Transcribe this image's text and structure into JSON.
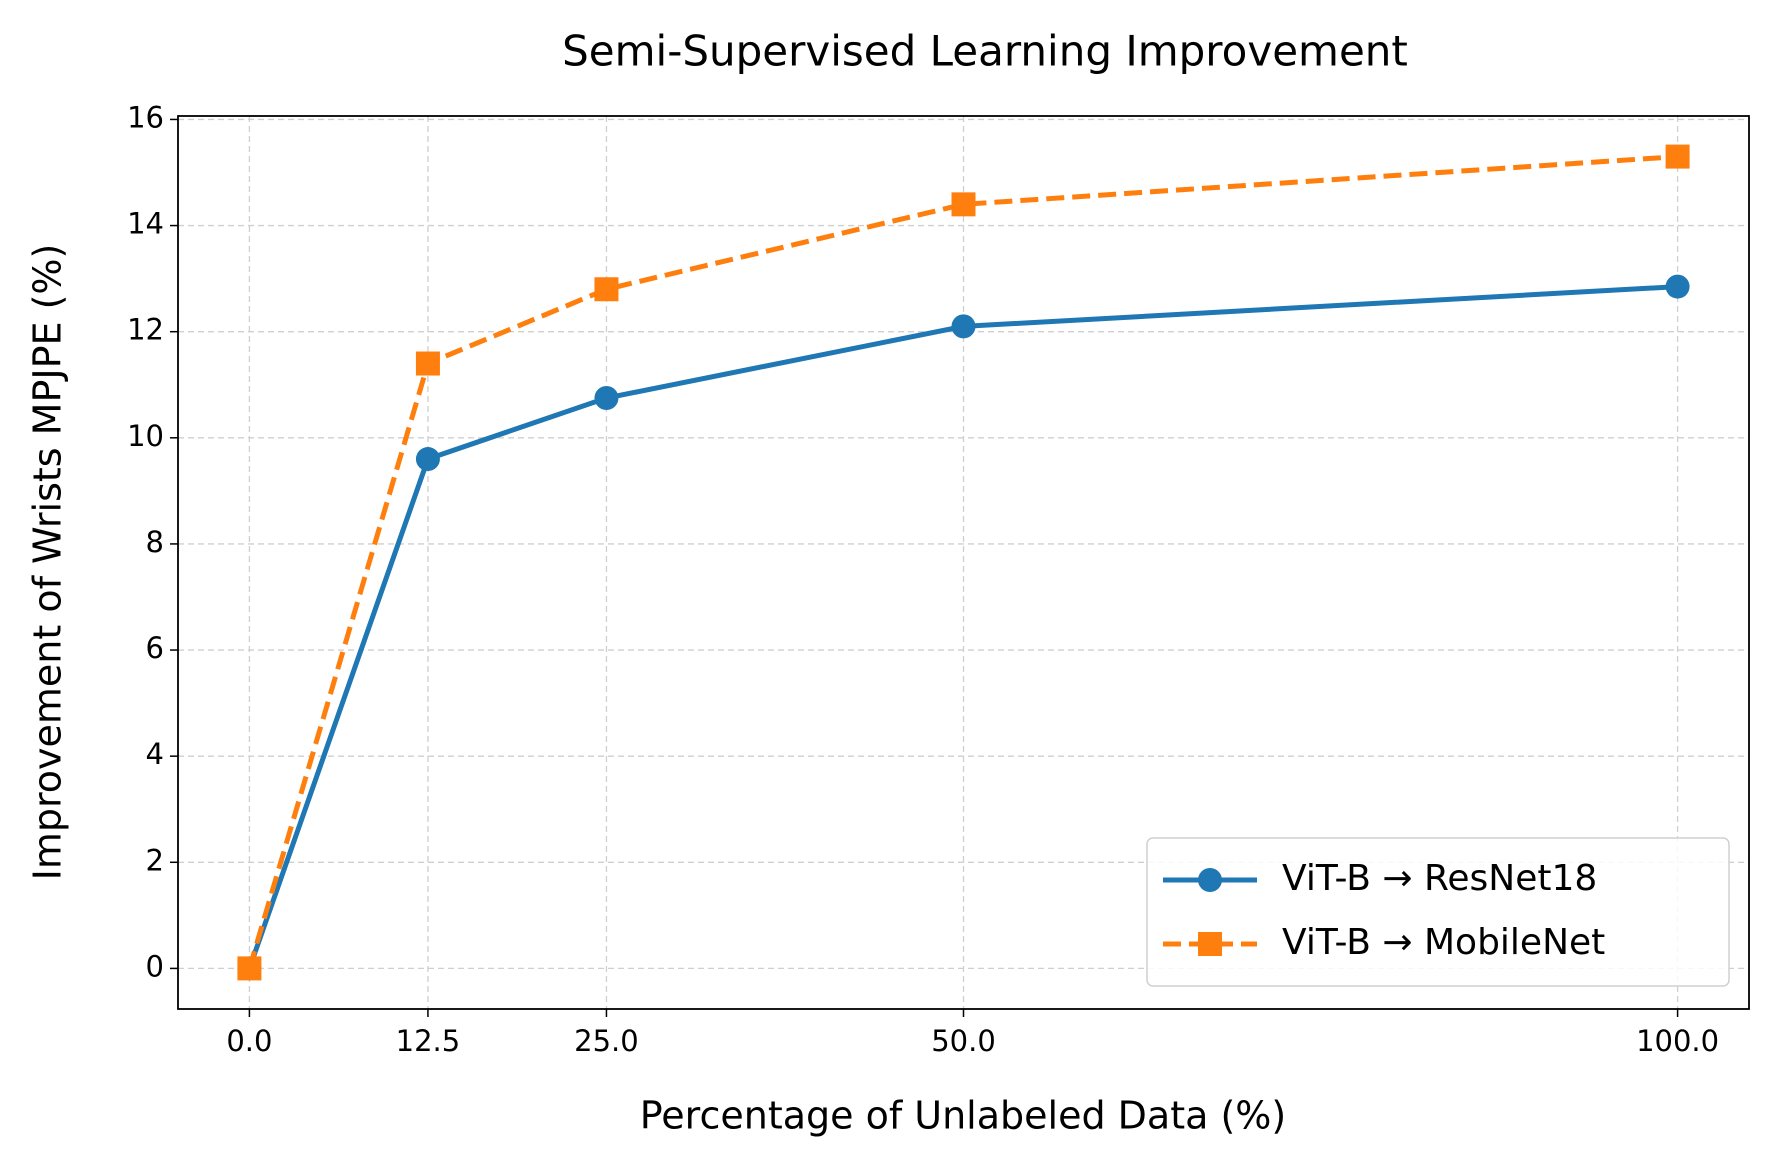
{
  "chart_data": {
    "type": "line",
    "title": "Semi-Supervised Learning Improvement",
    "x_label": "Percentage of Unlabeled Data (%)",
    "y_label": "Improvement of Wrists MPJPE (%)",
    "x": [
      0,
      12.5,
      25,
      50,
      100
    ],
    "series": [
      {
        "name": "ViT-B → ResNet18",
        "color": "#1f77b4",
        "marker": "circle",
        "dashed": false,
        "values": [
          0,
          9.6,
          10.75,
          12.1,
          12.85
        ]
      },
      {
        "name": "ViT-B → MobileNet",
        "color": "#ff7f0e",
        "marker": "square",
        "dashed": true,
        "values": [
          0,
          11.4,
          12.8,
          14.4,
          15.3
        ]
      }
    ],
    "xlim": [
      -5,
      105
    ],
    "xticks": [
      {
        "value": 0,
        "label": "0.0"
      },
      12.5,
      {
        "value": 25,
        "label": "25.0"
      },
      {
        "value": 50,
        "label": "50.0"
      },
      {
        "value": 100,
        "label": "100.0"
      }
    ],
    "ylim": [
      -0.765,
      16.065
    ],
    "yticks": [
      0,
      2,
      4,
      6,
      8,
      10,
      12,
      14,
      16
    ],
    "grid": true,
    "legend_position": "lower right"
  }
}
